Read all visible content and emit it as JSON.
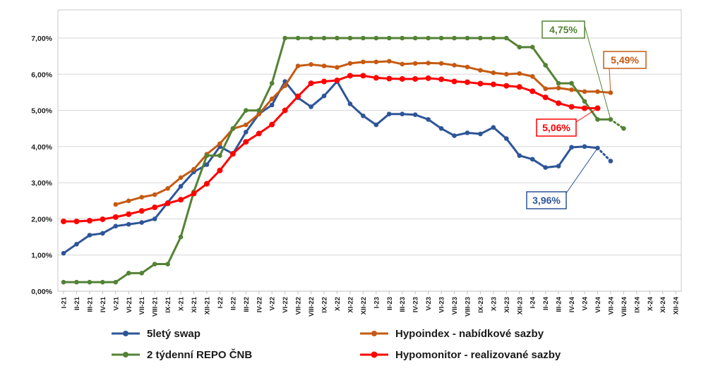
{
  "chart_data": {
    "type": "line",
    "title": "",
    "xlabel": "",
    "ylabel": "",
    "ylim": [
      0,
      7
    ],
    "y_ticks": [
      "0,00%",
      "1,00%",
      "2,00%",
      "3,00%",
      "4,00%",
      "5,00%",
      "6,00%",
      "7,00%"
    ],
    "grid": true,
    "categories": [
      "I-21",
      "II-21",
      "III-21",
      "IV-21",
      "V-21",
      "VI-21",
      "VII-21",
      "VIII-21",
      "IX-21",
      "X-21",
      "XI-21",
      "XII-21",
      "I-22",
      "II-22",
      "III-22",
      "IV-22",
      "V-22",
      "VI-22",
      "VII-22",
      "VIII-22",
      "IX-22",
      "X-22",
      "XI-22",
      "XII-22",
      "I-23",
      "II-23",
      "III-23",
      "IV-23",
      "V-23",
      "VI-23",
      "VII-23",
      "VIII-23",
      "IX-23",
      "X-23",
      "XI-23",
      "XII-23",
      "I-24",
      "II-24",
      "III-24",
      "IV-24",
      "V-24",
      "VI-24",
      "VII-24",
      "VIII-24",
      "IX-24",
      "X-24",
      "XI-24",
      "XII-24"
    ],
    "series": [
      {
        "name": "5letý swap",
        "color": "#2E5597",
        "values": [
          1.05,
          1.3,
          1.55,
          1.6,
          1.8,
          1.85,
          1.9,
          2.0,
          2.45,
          2.9,
          3.3,
          3.5,
          4.0,
          3.8,
          4.4,
          4.9,
          5.15,
          5.8,
          5.35,
          5.1,
          5.4,
          5.8,
          5.18,
          4.85,
          4.6,
          4.9,
          4.9,
          4.88,
          4.75,
          4.5,
          4.3,
          4.38,
          4.35,
          4.53,
          4.22,
          3.75,
          3.65,
          3.42,
          3.46,
          3.98,
          4.0,
          3.96,
          null,
          null,
          null,
          null,
          null,
          null
        ],
        "forecast": [
          null,
          null,
          null,
          null,
          null,
          null,
          null,
          null,
          null,
          null,
          null,
          null,
          null,
          null,
          null,
          null,
          null,
          null,
          null,
          null,
          null,
          null,
          null,
          null,
          null,
          null,
          null,
          null,
          null,
          null,
          null,
          null,
          null,
          null,
          null,
          null,
          null,
          null,
          null,
          null,
          null,
          3.96,
          3.6,
          null,
          null,
          null,
          null,
          null
        ]
      },
      {
        "name": "Hypoindex - nabídkové sazby",
        "color": "#C55A11",
        "values": [
          null,
          null,
          null,
          null,
          2.4,
          2.5,
          2.6,
          2.67,
          2.84,
          3.14,
          3.37,
          3.79,
          4.08,
          4.49,
          4.6,
          4.9,
          5.32,
          5.68,
          6.23,
          6.27,
          6.23,
          6.19,
          6.3,
          6.34,
          6.34,
          6.36,
          6.28,
          6.3,
          6.31,
          6.3,
          6.25,
          6.2,
          6.11,
          6.04,
          6.0,
          6.02,
          5.94,
          5.6,
          5.62,
          5.57,
          5.52,
          5.52,
          5.49,
          null,
          null,
          null,
          null,
          null
        ],
        "forecast": []
      },
      {
        "name": "2 týdenní REPO ČNB",
        "color": "#548235",
        "values": [
          0.25,
          0.25,
          0.25,
          0.25,
          0.25,
          0.5,
          0.5,
          0.75,
          0.75,
          1.5,
          2.75,
          3.75,
          3.75,
          4.5,
          5.0,
          5.0,
          5.75,
          7.0,
          7.0,
          7.0,
          7.0,
          7.0,
          7.0,
          7.0,
          7.0,
          7.0,
          7.0,
          7.0,
          7.0,
          7.0,
          7.0,
          7.0,
          7.0,
          7.0,
          7.0,
          6.75,
          6.75,
          6.25,
          5.75,
          5.75,
          5.25,
          4.75,
          4.75,
          null,
          null,
          null,
          null,
          null
        ],
        "forecast": [
          null,
          null,
          null,
          null,
          null,
          null,
          null,
          null,
          null,
          null,
          null,
          null,
          null,
          null,
          null,
          null,
          null,
          null,
          null,
          null,
          null,
          null,
          null,
          null,
          null,
          null,
          null,
          null,
          null,
          null,
          null,
          null,
          null,
          null,
          null,
          null,
          null,
          null,
          null,
          null,
          null,
          null,
          4.75,
          4.5,
          null,
          null,
          null,
          null
        ]
      },
      {
        "name": "Hypomonitor - realizované sazby",
        "color": "#FF0000",
        "values": [
          1.93,
          1.93,
          1.95,
          1.99,
          2.05,
          2.13,
          2.22,
          2.32,
          2.43,
          2.53,
          2.7,
          2.97,
          3.34,
          3.8,
          4.13,
          4.36,
          4.61,
          5.0,
          5.39,
          5.75,
          5.8,
          5.83,
          5.96,
          5.96,
          5.9,
          5.88,
          5.87,
          5.87,
          5.89,
          5.86,
          5.8,
          5.78,
          5.74,
          5.72,
          5.68,
          5.65,
          5.53,
          5.36,
          5.2,
          5.1,
          5.06,
          5.06,
          null,
          null,
          null,
          null,
          null,
          null
        ],
        "forecast": []
      }
    ],
    "annotations": [
      {
        "label": "4,75%",
        "series": "2 týdenní REPO ČNB",
        "color": "#548235"
      },
      {
        "label": "5,49%",
        "series": "Hypoindex - nabídkové sazby",
        "color": "#C55A11"
      },
      {
        "label": "5,06%",
        "series": "Hypomonitor - realizované sazby",
        "color": "#FF0000"
      },
      {
        "label": "3,96%",
        "series": "5letý swap",
        "color": "#2E5597"
      }
    ],
    "legend": {
      "placement": "bottom",
      "items": [
        "5letý swap",
        "Hypoindex - nabídkové sazby",
        "2 týdenní REPO ČNB",
        "Hypomonitor - realizované sazby"
      ]
    }
  }
}
